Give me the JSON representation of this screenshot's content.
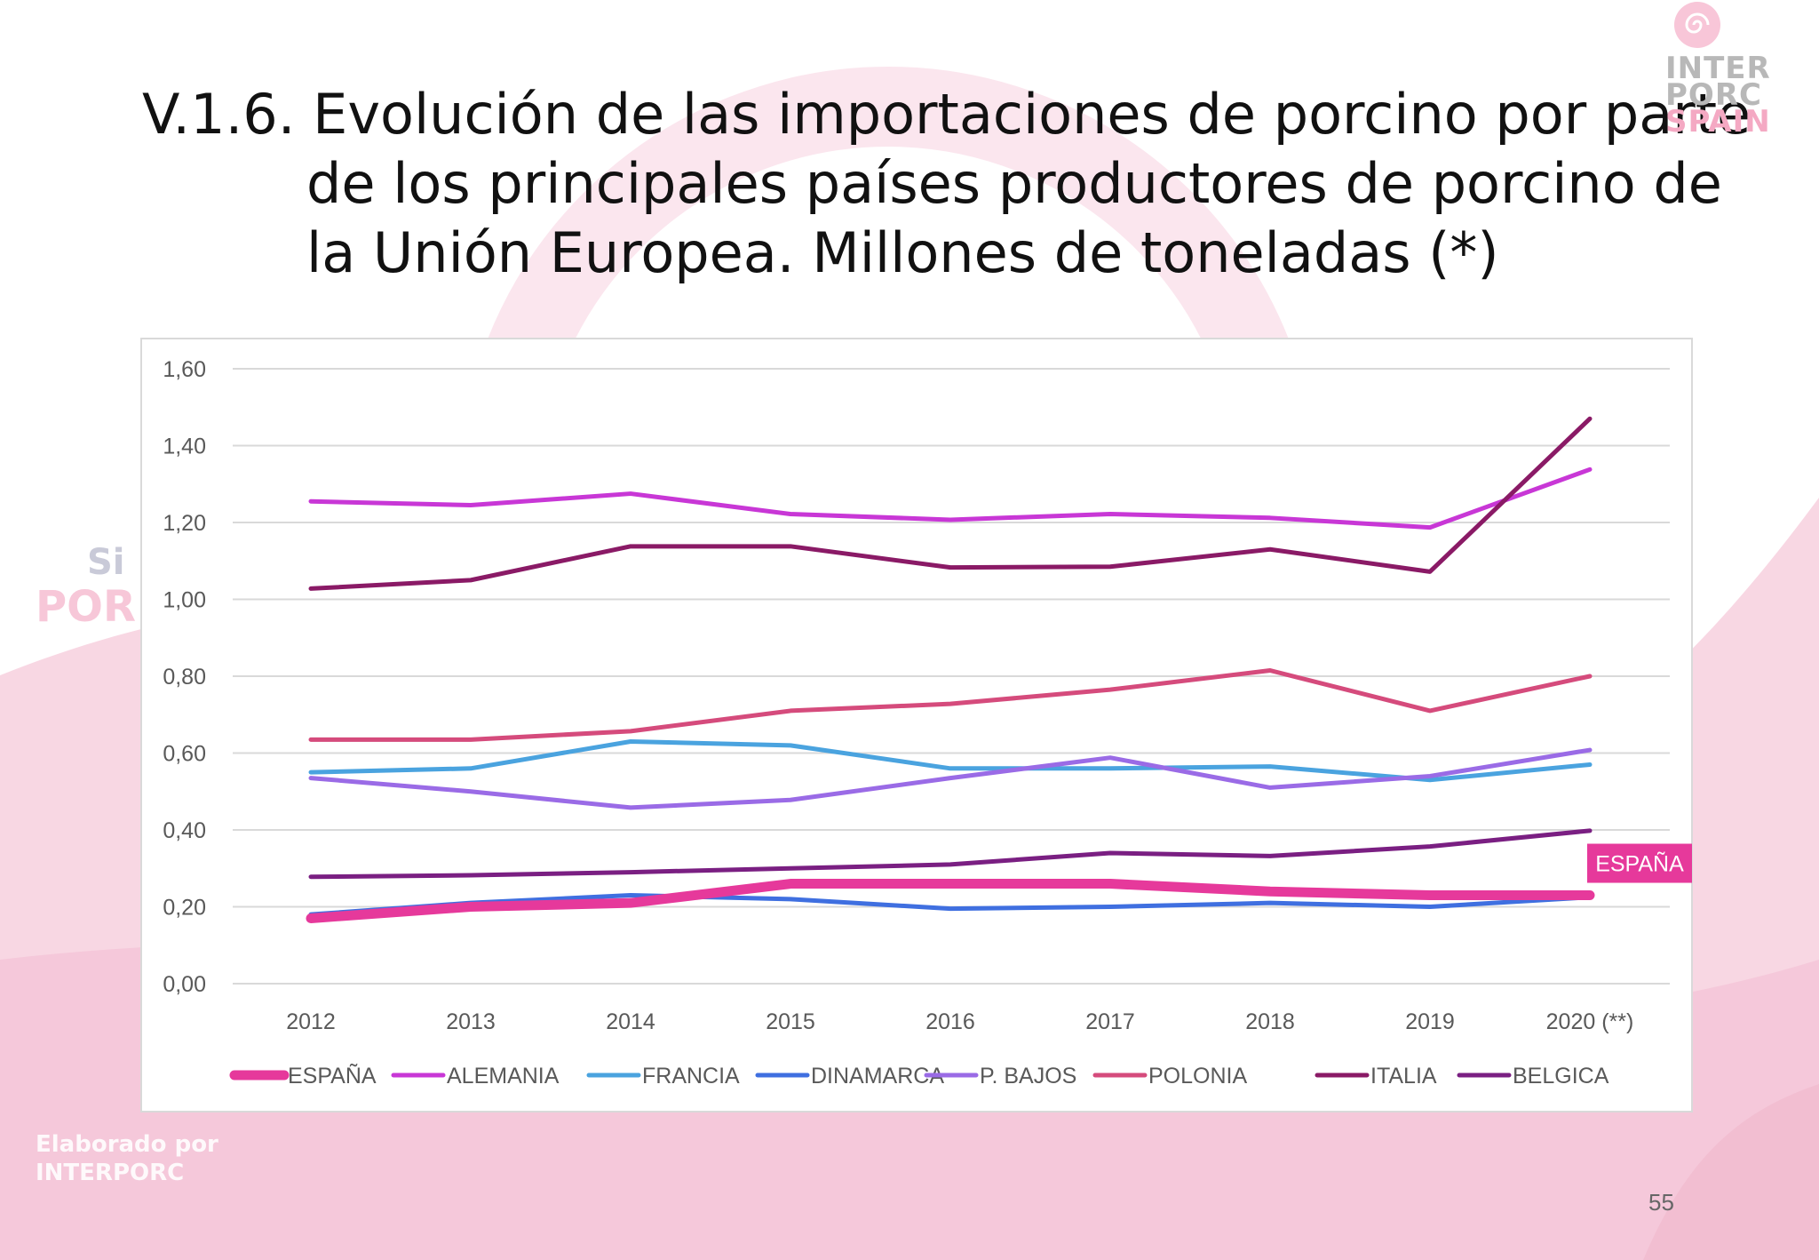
{
  "slide": {
    "title_lines": [
      "V.1.6. Evolución de las importaciones de porcino por parte",
      "de los principales países productores de porcino de",
      "la Unión Europea. Millones de toneladas (*)"
    ],
    "logo_top_right": {
      "line1": "INTER",
      "line2": "PORC",
      "line3": "SPAIN",
      "icon": "spiral-icon"
    },
    "logo_left": {
      "line1": "Si",
      "line2": "POR"
    },
    "credit_lines": [
      "Elaborado por",
      "INTERPORC"
    ],
    "page_number": "55"
  },
  "chart_data": {
    "type": "line",
    "title": "",
    "xlabel": "",
    "ylabel": "",
    "categories": [
      "2012",
      "2013",
      "2014",
      "2015",
      "2016",
      "2017",
      "2018",
      "2019",
      "2020 (**)"
    ],
    "ylim": [
      0,
      1.6
    ],
    "yticks": [
      "0,00",
      "0,20",
      "0,40",
      "0,60",
      "0,80",
      "1,00",
      "1,20",
      "1,40",
      "1,60"
    ],
    "grid": true,
    "legend_position": "bottom",
    "series": [
      {
        "name": "ESPAÑA",
        "color": "#e6399b",
        "emphasis": true,
        "values": [
          0.17,
          0.2,
          0.21,
          0.26,
          0.26,
          0.26,
          0.24,
          0.23,
          0.23
        ]
      },
      {
        "name": "ALEMANIA",
        "color": "#c837d6",
        "values": [
          1.255,
          1.245,
          1.275,
          1.222,
          1.207,
          1.222,
          1.212,
          1.187,
          1.338
        ]
      },
      {
        "name": "FRANCIA",
        "color": "#4aa3df",
        "values": [
          0.55,
          0.56,
          0.63,
          0.62,
          0.56,
          0.56,
          0.565,
          0.53,
          0.57
        ]
      },
      {
        "name": "DINAMARCA",
        "color": "#3f6fe0",
        "values": [
          0.18,
          0.21,
          0.23,
          0.22,
          0.195,
          0.2,
          0.21,
          0.2,
          0.225
        ]
      },
      {
        "name": "P. BAJOS",
        "color": "#9a6be6",
        "values": [
          0.535,
          0.5,
          0.458,
          0.478,
          0.535,
          0.588,
          0.51,
          0.54,
          0.608
        ]
      },
      {
        "name": "POLONIA",
        "color": "#d54b7c",
        "values": [
          0.635,
          0.635,
          0.657,
          0.71,
          0.728,
          0.765,
          0.815,
          0.71,
          0.8
        ]
      },
      {
        "name": "ITALIA",
        "color": "#8a1a66",
        "values": [
          1.028,
          1.05,
          1.138,
          1.138,
          1.083,
          1.085,
          1.13,
          1.072,
          1.47
        ]
      },
      {
        "name": "BELGICA",
        "color": "#7a1f82",
        "values": [
          0.278,
          0.282,
          0.29,
          0.3,
          0.31,
          0.34,
          0.332,
          0.357,
          0.398
        ]
      }
    ],
    "annotation": {
      "text": "ESPAÑA",
      "series": "ESPAÑA",
      "background": "#e6399b"
    }
  }
}
